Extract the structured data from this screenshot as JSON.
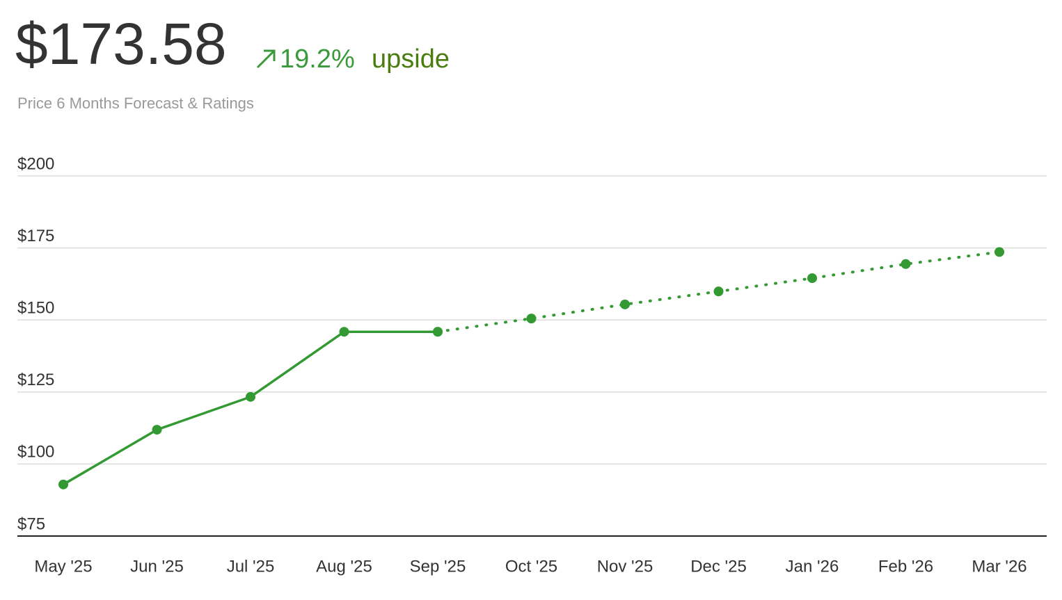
{
  "chart_data": {
    "type": "line",
    "title": "$173.58",
    "change": "19.2%",
    "change_note": "upside",
    "subtitle": "Price 6 Months Forecast & Ratings",
    "categories": [
      "May '25",
      "Jun '25",
      "Jul '25",
      "Aug '25",
      "Sep '25",
      "Oct '25",
      "Nov '25",
      "Dec '25",
      "Jan '26",
      "Feb '26",
      "Mar '26"
    ],
    "series": [
      {
        "color": "#339933",
        "dashed": false,
        "values": [
          92.9,
          111.9,
          123.3,
          145.9,
          145.9,
          null,
          null,
          null,
          null,
          null,
          null
        ]
      },
      {
        "color": "#339933",
        "dashed": true,
        "values": [
          null,
          null,
          null,
          null,
          145.9,
          150.5,
          155.4,
          159.9,
          164.5,
          169.4,
          173.58
        ]
      }
    ],
    "ylim": [
      75,
      200
    ],
    "yticks": [
      {
        "value": 75,
        "label": "$75"
      },
      {
        "value": 100,
        "label": "$100"
      },
      {
        "value": 125,
        "label": "$125"
      },
      {
        "value": 150,
        "label": "$150"
      },
      {
        "value": 175,
        "label": "$175"
      },
      {
        "value": 200,
        "label": "$200"
      }
    ],
    "grid": true
  }
}
